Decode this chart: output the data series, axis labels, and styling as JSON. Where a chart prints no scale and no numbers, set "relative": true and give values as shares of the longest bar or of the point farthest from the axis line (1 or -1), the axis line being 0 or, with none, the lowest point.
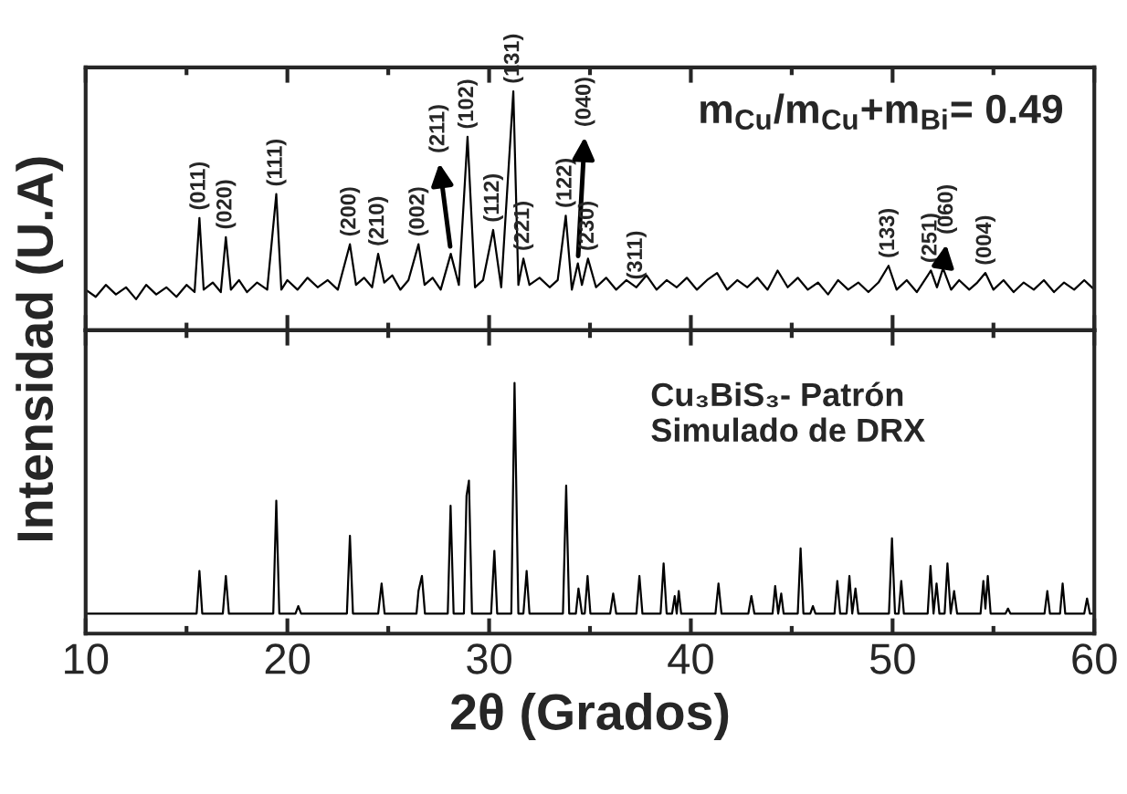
{
  "chart_data": [
    {
      "type": "line",
      "relative": true,
      "ylabel": "Intensidad (U.A)",
      "xlim": [
        10,
        60
      ],
      "xticks": [
        10,
        20,
        30,
        40,
        50,
        60
      ],
      "tick_labels": false,
      "grid": false,
      "legend": false,
      "x": [
        10,
        10.5,
        11,
        11.5,
        12,
        12.5,
        13,
        13.5,
        14,
        14.5,
        15,
        15.4,
        15.64,
        15.85,
        16.3,
        16.7,
        16.95,
        17.2,
        17.6,
        18,
        18.5,
        19,
        19.45,
        19.7,
        20,
        20.5,
        21,
        21.5,
        22,
        22.5,
        23.1,
        23.4,
        23.8,
        24.2,
        24.5,
        24.8,
        25.2,
        25.6,
        26,
        26.5,
        26.8,
        27.2,
        27.6,
        28.1,
        28.5,
        28.93,
        29.3,
        29.7,
        30.2,
        30.6,
        31.2,
        31.45,
        31.7,
        32,
        32.5,
        33,
        33.4,
        33.8,
        34.1,
        34.4,
        34.6,
        34.9,
        35.3,
        35.8,
        36.3,
        36.8,
        37.3,
        37.8,
        38.3,
        38.8,
        39.3,
        39.8,
        40.3,
        40.8,
        41.3,
        41.8,
        42.3,
        42.8,
        43.3,
        43.8,
        44.3,
        44.8,
        45.3,
        45.8,
        46.3,
        46.8,
        47.3,
        47.8,
        48.3,
        48.8,
        49.3,
        49.8,
        50.2,
        50.7,
        51.2,
        51.9,
        52.2,
        52.5,
        52.9,
        53.3,
        53.8,
        54.2,
        54.6,
        55,
        55.5,
        56,
        56.5,
        57,
        57.5,
        58,
        58.5,
        59,
        59.5,
        60
      ],
      "series": [
        {
          "color": "#000000",
          "values": [
            0.17,
            0.14,
            0.19,
            0.15,
            0.18,
            0.13,
            0.19,
            0.15,
            0.18,
            0.14,
            0.19,
            0.16,
            0.47,
            0.17,
            0.2,
            0.16,
            0.39,
            0.17,
            0.21,
            0.16,
            0.2,
            0.17,
            0.57,
            0.17,
            0.21,
            0.17,
            0.22,
            0.18,
            0.21,
            0.17,
            0.36,
            0.19,
            0.22,
            0.18,
            0.32,
            0.2,
            0.23,
            0.17,
            0.21,
            0.36,
            0.19,
            0.22,
            0.17,
            0.32,
            0.19,
            0.81,
            0.18,
            0.21,
            0.42,
            0.18,
            1.0,
            0.19,
            0.3,
            0.19,
            0.22,
            0.18,
            0.21,
            0.48,
            0.17,
            0.28,
            0.19,
            0.3,
            0.18,
            0.22,
            0.17,
            0.21,
            0.18,
            0.23,
            0.17,
            0.21,
            0.18,
            0.22,
            0.17,
            0.21,
            0.24,
            0.17,
            0.21,
            0.18,
            0.22,
            0.17,
            0.25,
            0.18,
            0.22,
            0.17,
            0.2,
            0.15,
            0.21,
            0.17,
            0.2,
            0.16,
            0.2,
            0.27,
            0.17,
            0.21,
            0.16,
            0.25,
            0.18,
            0.26,
            0.17,
            0.21,
            0.17,
            0.2,
            0.24,
            0.17,
            0.21,
            0.16,
            0.2,
            0.17,
            0.21,
            0.16,
            0.2,
            0.17,
            0.21,
            0.17
          ]
        }
      ],
      "annotations": [
        {
          "text": "(011)",
          "x": 15.64,
          "y": 0.47
        },
        {
          "text": "(020)",
          "x": 16.95,
          "y": 0.39
        },
        {
          "text": "(111)",
          "x": 19.45,
          "y": 0.57
        },
        {
          "text": "(200)",
          "x": 23.1,
          "y": 0.36
        },
        {
          "text": "(210)",
          "x": 24.5,
          "y": 0.32
        },
        {
          "text": "(002)",
          "x": 26.5,
          "y": 0.36
        },
        {
          "text": "(211)",
          "x": 28.1,
          "y": 0.32
        },
        {
          "text": "(102)",
          "x": 28.93,
          "y": 0.81
        },
        {
          "text": "(112)",
          "x": 30.2,
          "y": 0.42
        },
        {
          "text": "(131)",
          "x": 31.2,
          "y": 1.0
        },
        {
          "text": "(221)",
          "x": 31.7,
          "y": 0.3
        },
        {
          "text": "(122)",
          "x": 33.8,
          "y": 0.48
        },
        {
          "text": "(040)",
          "x": 34.4,
          "y": 0.28
        },
        {
          "text": "(230)",
          "x": 34.9,
          "y": 0.3
        },
        {
          "text": "(311)",
          "x": 37.3,
          "y": 0.18
        },
        {
          "text": "(133)",
          "x": 49.8,
          "y": 0.27
        },
        {
          "text": "(251)",
          "x": 51.9,
          "y": 0.25
        },
        {
          "text": "(060)",
          "x": 52.5,
          "y": 0.26
        },
        {
          "text": "(004)",
          "x": 54.6,
          "y": 0.24
        },
        "m$_{Cu}$/m$_{Cu}$+m$_{Bi}$= 0.49"
      ]
    },
    {
      "type": "line",
      "relative": true,
      "xlabel": "2θ (Grados)",
      "xlim": [
        10,
        60
      ],
      "xticks": [
        10,
        20,
        30,
        40,
        50,
        60
      ],
      "tick_labels": "x",
      "grid": false,
      "legend": false,
      "x": [
        10,
        15.5,
        15.64,
        15.78,
        16.8,
        16.95,
        17.1,
        19.3,
        19.45,
        19.6,
        20.4,
        20.54,
        20.68,
        22.95,
        23.1,
        23.25,
        24.5,
        24.67,
        24.82,
        26.4,
        26.5,
        26.67,
        26.82,
        27.95,
        28.09,
        28.24,
        28.75,
        28.88,
        29.0,
        29.15,
        30.1,
        30.26,
        30.4,
        31.1,
        31.26,
        31.45,
        31.7,
        31.86,
        32.0,
        33.66,
        33.82,
        33.97,
        34.3,
        34.43,
        34.6,
        34.74,
        34.88,
        35.02,
        36.0,
        36.15,
        36.3,
        37.3,
        37.45,
        37.6,
        38.5,
        38.65,
        38.8,
        39.07,
        39.2,
        39.3,
        39.4,
        39.52,
        41.22,
        41.37,
        41.52,
        42.85,
        43.0,
        43.15,
        44.05,
        44.18,
        44.33,
        44.48,
        44.6,
        45.3,
        45.44,
        45.58,
        45.92,
        46.05,
        46.18,
        47.12,
        47.26,
        47.4,
        47.72,
        47.86,
        48.0,
        48.16,
        48.3,
        49.82,
        49.97,
        50.12,
        50.3,
        50.43,
        50.56,
        51.74,
        51.88,
        52.03,
        52.18,
        52.32,
        52.58,
        52.72,
        52.88,
        53.05,
        53.2,
        54.36,
        54.5,
        54.6,
        54.72,
        54.86,
        55.6,
        55.72,
        55.84,
        57.53,
        57.67,
        57.8,
        58.3,
        58.43,
        58.56,
        59.5,
        59.64,
        59.78,
        60
      ],
      "series": [
        {
          "color": "#000000",
          "values": [
            0.08,
            0.08,
            0.25,
            0.08,
            0.08,
            0.23,
            0.08,
            0.08,
            0.53,
            0.08,
            0.08,
            0.11,
            0.08,
            0.08,
            0.39,
            0.08,
            0.08,
            0.2,
            0.08,
            0.08,
            0.17,
            0.23,
            0.08,
            0.08,
            0.51,
            0.08,
            0.08,
            0.55,
            0.61,
            0.08,
            0.08,
            0.33,
            0.08,
            0.08,
            1.0,
            0.08,
            0.08,
            0.25,
            0.08,
            0.08,
            0.59,
            0.08,
            0.08,
            0.18,
            0.08,
            0.08,
            0.23,
            0.08,
            0.08,
            0.16,
            0.08,
            0.08,
            0.23,
            0.08,
            0.08,
            0.28,
            0.08,
            0.08,
            0.15,
            0.08,
            0.17,
            0.08,
            0.08,
            0.2,
            0.08,
            0.08,
            0.15,
            0.08,
            0.08,
            0.19,
            0.08,
            0.16,
            0.08,
            0.08,
            0.34,
            0.08,
            0.08,
            0.11,
            0.08,
            0.08,
            0.21,
            0.08,
            0.08,
            0.23,
            0.08,
            0.18,
            0.08,
            0.08,
            0.38,
            0.08,
            0.08,
            0.21,
            0.08,
            0.08,
            0.27,
            0.08,
            0.2,
            0.08,
            0.08,
            0.28,
            0.08,
            0.17,
            0.08,
            0.08,
            0.21,
            0.1,
            0.23,
            0.08,
            0.08,
            0.1,
            0.08,
            0.08,
            0.17,
            0.08,
            0.08,
            0.2,
            0.08,
            0.08,
            0.14,
            0.08,
            0.08
          ]
        }
      ],
      "annotations": [
        "Cu₃BiS₃- Patrón\nSimulado de DRX"
      ]
    }
  ]
}
